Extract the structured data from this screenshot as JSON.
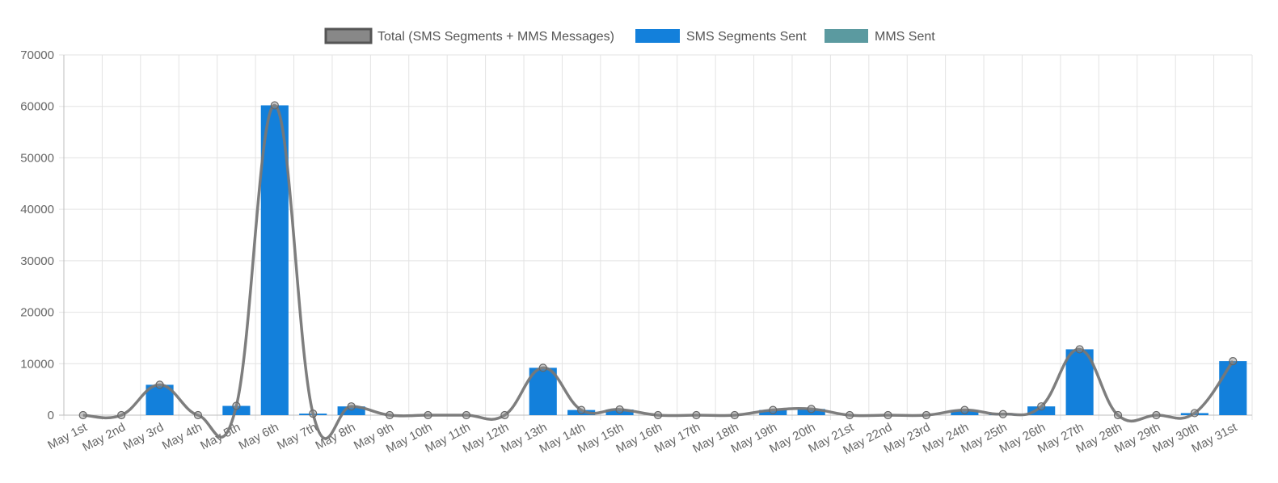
{
  "chart_data": {
    "type": "bar",
    "categories": [
      "May 1st",
      "May 2nd",
      "May 3rd",
      "May 4th",
      "May 5th",
      "May 6th",
      "May 7th",
      "May 8th",
      "May 9th",
      "May 10th",
      "May 11th",
      "May 12th",
      "May 13th",
      "May 14th",
      "May 15th",
      "May 16th",
      "May 17th",
      "May 18th",
      "May 19th",
      "May 20th",
      "May 21st",
      "May 22nd",
      "May 23rd",
      "May 24th",
      "May 25th",
      "May 26th",
      "May 27th",
      "May 28th",
      "May 29th",
      "May 30th",
      "May 31st"
    ],
    "series": [
      {
        "name": "Total (SMS Segments + MMS Messages)",
        "type": "line",
        "color": "#777777",
        "values": [
          0,
          0,
          5900,
          0,
          1800,
          60200,
          300,
          1700,
          0,
          0,
          0,
          0,
          9200,
          1000,
          1100,
          0,
          0,
          0,
          1000,
          1200,
          0,
          0,
          0,
          1000,
          200,
          1700,
          12800,
          0,
          0,
          400,
          10500
        ]
      },
      {
        "name": "SMS Segments Sent",
        "type": "bar",
        "color": "#1380db",
        "values": [
          0,
          0,
          5900,
          0,
          1800,
          60200,
          300,
          1700,
          0,
          0,
          0,
          0,
          9200,
          1000,
          1100,
          0,
          0,
          0,
          1000,
          1200,
          0,
          0,
          0,
          1000,
          200,
          1700,
          12800,
          0,
          0,
          400,
          10500
        ]
      },
      {
        "name": "MMS Sent",
        "type": "bar",
        "color": "#5b9aa0",
        "values": [
          0,
          0,
          0,
          0,
          0,
          0,
          0,
          0,
          0,
          0,
          0,
          0,
          0,
          0,
          0,
          0,
          0,
          0,
          0,
          0,
          0,
          0,
          0,
          0,
          0,
          0,
          0,
          0,
          0,
          0,
          0
        ]
      }
    ],
    "y_ticks": [
      "0",
      "10000",
      "20000",
      "30000",
      "40000",
      "50000",
      "60000",
      "70000"
    ],
    "ylim": [
      0,
      70000
    ],
    "grid": true,
    "legend_position": "top-center"
  }
}
